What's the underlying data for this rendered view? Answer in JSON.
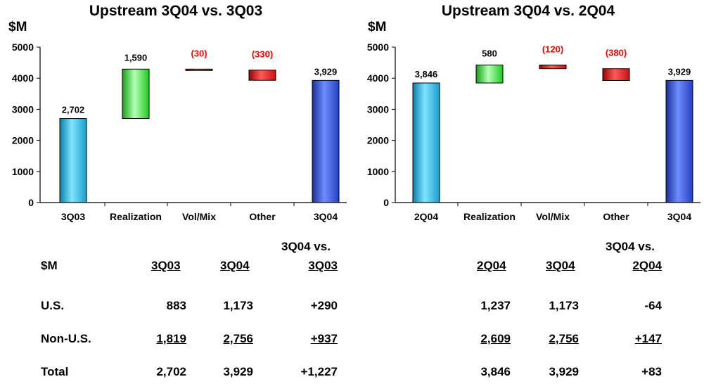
{
  "chart_data": [
    {
      "type": "bar",
      "subtype": "waterfall",
      "title": "Upstream 3Q04 vs. 3Q03",
      "ylabel": "$M",
      "ylim": [
        0,
        5000
      ],
      "yticks": [
        0,
        1000,
        2000,
        3000,
        4000,
        5000
      ],
      "grid": false,
      "categories": [
        "3Q03",
        "Realization",
        "Vol/Mix",
        "Other",
        "3Q04"
      ],
      "values": [
        2702,
        1590,
        -30,
        -330,
        3929
      ],
      "bar_kinds": [
        "total",
        "delta",
        "delta",
        "delta",
        "total"
      ],
      "data_labels": [
        "2,702",
        "1,590",
        "(30)",
        "(330)",
        "3,929"
      ]
    },
    {
      "type": "bar",
      "subtype": "waterfall",
      "title": "Upstream 3Q04 vs. 2Q04",
      "ylabel": "$M",
      "ylim": [
        0,
        5000
      ],
      "yticks": [
        0,
        1000,
        2000,
        3000,
        4000,
        5000
      ],
      "grid": false,
      "categories": [
        "2Q04",
        "Realization",
        "Vol/Mix",
        "Other",
        "3Q04"
      ],
      "values": [
        3846,
        580,
        -120,
        -380,
        3929
      ],
      "bar_kinds": [
        "total",
        "delta",
        "delta",
        "delta",
        "total"
      ],
      "data_labels": [
        "3,846",
        "580",
        "(120)",
        "(380)",
        "3,929"
      ]
    }
  ],
  "colors": {
    "total_left": "#29b6e0",
    "total_right": "#2a4fd0",
    "positive": "#2fd42f",
    "negative": "#e01010",
    "negative_label": "#ff0000"
  },
  "tables": [
    {
      "row_header": "$M",
      "col_headers": [
        "3Q03",
        "3Q04",
        "3Q04 vs.",
        "3Q03"
      ],
      "rows": [
        {
          "label": "U.S.",
          "values": [
            "883",
            "1,173",
            "+290"
          ]
        },
        {
          "label": "Non-U.S.",
          "values": [
            "1,819",
            "2,756",
            "+937"
          ]
        },
        {
          "label": "Total",
          "values": [
            "2,702",
            "3,929",
            "+1,227"
          ]
        }
      ]
    },
    {
      "col_headers": [
        "2Q04",
        "3Q04",
        "3Q04 vs.",
        "2Q04"
      ],
      "rows": [
        {
          "values": [
            "1,237",
            "1,173",
            "-64"
          ]
        },
        {
          "values": [
            "2,609",
            "2,756",
            "+147"
          ]
        },
        {
          "values": [
            "3,846",
            "3,929",
            "+83"
          ]
        }
      ]
    }
  ]
}
